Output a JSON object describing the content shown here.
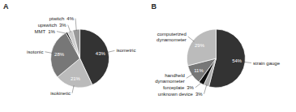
{
  "chart_data": [
    {
      "type": "pie",
      "title": "A",
      "categories": [
        "isometric",
        "isokinetic",
        "isotonic",
        "MMT",
        "upswitch",
        "ptwitch"
      ],
      "values": [
        43,
        21,
        28,
        1,
        3,
        4
      ],
      "value_labels": [
        "43%",
        "21%",
        "28%",
        "1%",
        "3%",
        "4%"
      ],
      "colors": [
        "#333333",
        "#bbbbbb",
        "#777777",
        "#111111",
        "#cccccc",
        "#999999"
      ],
      "data_labels": true
    },
    {
      "type": "pie",
      "title": "B",
      "categories": [
        "strain gauge",
        "unknown device",
        "forceplate",
        "handheld\ndynamometer",
        "computerized\ndynamometer"
      ],
      "values": [
        54,
        3,
        3,
        11,
        29
      ],
      "value_labels": [
        "54%",
        "3%",
        "3%",
        "11%",
        "29%"
      ],
      "colors": [
        "#333333",
        "#aaaaaa",
        "#111111",
        "#777777",
        "#bbbbbb"
      ],
      "data_labels": true
    }
  ]
}
